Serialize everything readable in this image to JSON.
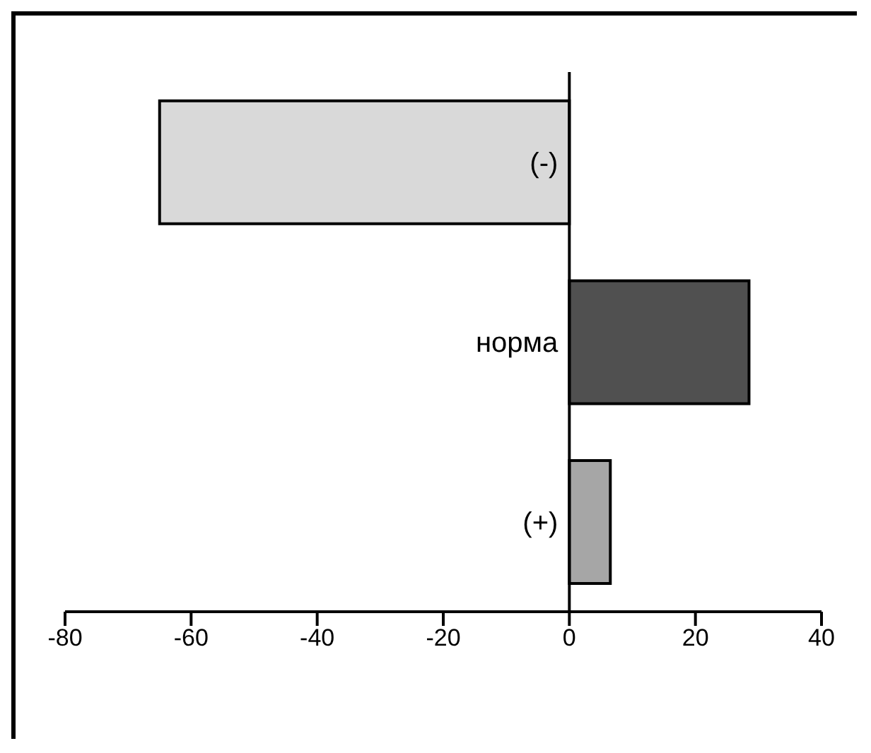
{
  "chart_data": {
    "type": "bar",
    "orientation": "horizontal",
    "categories": [
      "(-)",
      "норма",
      "(+)"
    ],
    "values": [
      -65,
      28.5,
      6.5
    ],
    "colors": [
      "#d9d9d9",
      "#505050",
      "#a6a6a6"
    ],
    "xlim": [
      -80,
      40
    ],
    "xticks": [
      -80,
      -60,
      -40,
      -20,
      0,
      20,
      40
    ]
  }
}
